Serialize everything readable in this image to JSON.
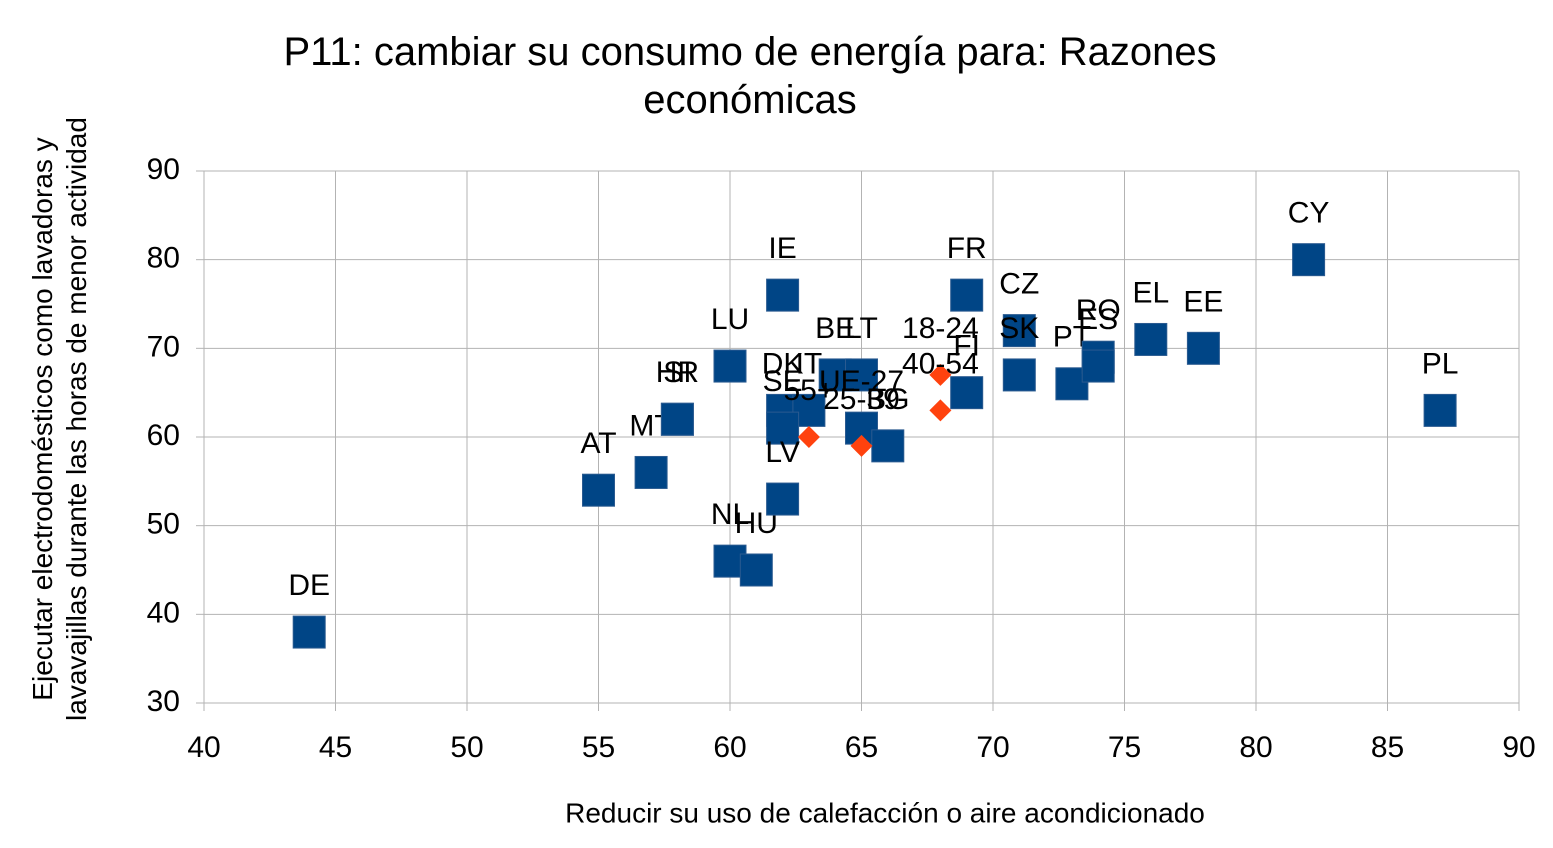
{
  "chart_data": {
    "type": "scatter",
    "title": "P11: cambiar su consumo de energía para: Razones económicas",
    "x_label": "Reducir su uso de calefacción o aire acondicionado",
    "y_label": "Ejecutar electrodomésticos como lavadoras y lavavajillas durante las horas de menor actividad",
    "xlim": [
      40,
      90
    ],
    "xticks": [
      40,
      45,
      50,
      55,
      60,
      65,
      70,
      75,
      80,
      85,
      90
    ],
    "ylim": [
      30,
      90
    ],
    "yticks": [
      30,
      40,
      50,
      60,
      70,
      80,
      90
    ],
    "grid": true,
    "series": [
      {
        "color": "#004586",
        "marker": "square",
        "labels": [
          "DE",
          "AT",
          "MT",
          "HR",
          "SI",
          "LU",
          "NL",
          "HU",
          "IE",
          "DK",
          "IT",
          "SE",
          "LV",
          "BE",
          "LT",
          "UE-27",
          "BG",
          "FR",
          "FI",
          "CZ",
          "SK",
          "PT",
          "RO",
          "ES",
          "EL",
          "EE",
          "CY",
          "PL"
        ],
        "x": [
          44,
          55,
          57,
          58,
          58,
          60,
          60,
          61,
          62,
          62,
          63,
          62,
          62,
          64,
          65,
          65,
          66,
          69,
          69,
          71,
          71,
          73,
          74,
          74,
          76,
          78,
          82,
          87
        ],
        "values": [
          38,
          54,
          56,
          62,
          62,
          68,
          46,
          45,
          76,
          63,
          63,
          61,
          53,
          67,
          67,
          61,
          59,
          76,
          65,
          72,
          67,
          66,
          69,
          68,
          71,
          70,
          80,
          63
        ]
      },
      {
        "color": "#ff420e",
        "marker": "diamond",
        "labels": [
          "18-24",
          "40-54",
          "55+",
          "25-39"
        ],
        "x": [
          68,
          68,
          63,
          65
        ],
        "values": [
          67,
          63,
          60,
          59
        ]
      }
    ]
  }
}
